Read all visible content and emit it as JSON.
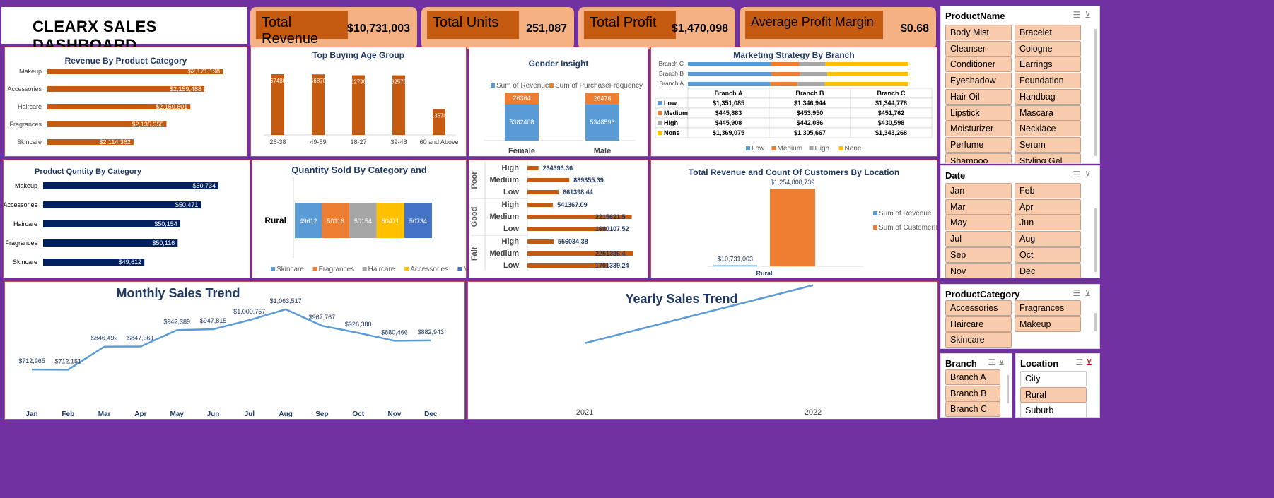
{
  "title": "CLEARX SALES DASHBOARD",
  "kpis": {
    "revenue": {
      "label": "Total Revenue",
      "value": "$10,731,003"
    },
    "units": {
      "label": "Total Units",
      "value": "251,087"
    },
    "profit": {
      "label": "Total Profit",
      "value": "$1,470,098"
    },
    "margin": {
      "label": "Average Profit Margin",
      "value": "$0.68"
    }
  },
  "colors": {
    "orange": "#c55a11",
    "navy": "#002060",
    "blue": "#5b9bd5",
    "lightorange": "#ed7d31",
    "gray": "#a5a5a5",
    "gold": "#ffc000",
    "royal": "#4472c4",
    "bg": "#7030a0"
  },
  "revenue_by_category": {
    "title": "Revenue By Product Category",
    "categories": [
      "Makeup",
      "Accessories",
      "Haircare",
      "Fragrances",
      "Skincare"
    ],
    "values": [
      2171198,
      2159488,
      2150601,
      2135355,
      2114362
    ],
    "labels": [
      "$2,171,198",
      "$2,159,488",
      "$2,150,601",
      "$2,135,355",
      "$2,114,362"
    ]
  },
  "age_group": {
    "title": "Top Buying Age Group",
    "categories": [
      "28-38",
      "49-59",
      "18-27",
      "39-48",
      "60 and Above"
    ],
    "values": [
      2674800,
      2668700,
      2627900,
      2625700,
      1135700
    ],
    "labels": [
      "2674800",
      "2668700",
      "2627900",
      "2625700",
      "1135700"
    ]
  },
  "gender": {
    "title": "Gender Insight",
    "legend": [
      "Sum of Revenue",
      "Sum of PurchaseFrequency"
    ],
    "categories": [
      "Female",
      "Male"
    ],
    "revenue": [
      5382408,
      5348596
    ],
    "frequency": [
      26364,
      26476
    ]
  },
  "marketing": {
    "title": "Marketing Strategy By Branch",
    "branches_bar": [
      "Branch C",
      "Branch B",
      "Branch A"
    ],
    "columns": [
      "Branch A",
      "Branch B",
      "Branch C"
    ],
    "rows": [
      {
        "name": "Low",
        "values": [
          "$1,351,085",
          "$1,346,944",
          "$1,344,778"
        ]
      },
      {
        "name": "Medium",
        "values": [
          "$445,883",
          "$453,950",
          "$451,762"
        ]
      },
      {
        "name": "High",
        "values": [
          "$445,908",
          "$442,086",
          "$430,598"
        ]
      },
      {
        "name": "None",
        "values": [
          "$1,369,075",
          "$1,305,667",
          "$1,343,268"
        ]
      }
    ],
    "raw": {
      "Branch A": [
        1351085,
        445883,
        445908,
        1369075
      ],
      "Branch B": [
        1346944,
        453950,
        442086,
        1305667
      ],
      "Branch C": [
        1344778,
        451762,
        430598,
        1343268
      ]
    },
    "legend": [
      "Low",
      "Medium",
      "High",
      "None"
    ]
  },
  "qty_by_category": {
    "title": "Product Quntity By Category",
    "categories": [
      "Makeup",
      "Accessories",
      "Haircare",
      "Fragrances",
      "Skincare"
    ],
    "values": [
      50734,
      50471,
      50154,
      50116,
      49612
    ],
    "labels": [
      "$50,734",
      "$50,471",
      "$50,154",
      "$50,116",
      "$49,612"
    ]
  },
  "qty_sold": {
    "title": "Quantity Sold By Category and",
    "row_label": "Rural",
    "segments": [
      {
        "name": "Skincare",
        "value": 49612
      },
      {
        "name": "Fragrances",
        "value": 50116
      },
      {
        "name": "Haircare",
        "value": 50154
      },
      {
        "name": "Accessories",
        "value": 50471
      },
      {
        "name": "Makeup",
        "value": 50734
      }
    ]
  },
  "satisfaction": {
    "groups": [
      {
        "name": "Poor",
        "items": [
          {
            "label": "High",
            "value": 234393.36,
            "text": "234393.36"
          },
          {
            "label": "Medium",
            "value": 889355.39,
            "text": "889355.39"
          },
          {
            "label": "Low",
            "value": 661398.44,
            "text": "661398.44"
          }
        ]
      },
      {
        "name": "Good",
        "items": [
          {
            "label": "High",
            "value": 541367.09,
            "text": "541367.09"
          },
          {
            "label": "Medium",
            "value": 2215621.5,
            "text": "2215621.5"
          },
          {
            "label": "Low",
            "value": 1680107.52,
            "text": "1680107.52"
          }
        ]
      },
      {
        "name": "Fair",
        "items": [
          {
            "label": "High",
            "value": 556034.38,
            "text": "556034.38"
          },
          {
            "label": "Medium",
            "value": 2251386.4,
            "text": "2251386.4"
          },
          {
            "label": "Low",
            "value": 1701339.24,
            "text": "1701339.24"
          }
        ]
      }
    ]
  },
  "location_chart": {
    "title": "Total Revenue and Count Of Customers By Location",
    "category": "Rural",
    "revenue": 10731003,
    "revenue_label": "$10,731,003",
    "customers": 1254808739,
    "customers_label": "$1,254,808,739",
    "legend": [
      "Sum of Revenue",
      "Sum of CustomerID"
    ]
  },
  "monthly": {
    "title": "Monthly Sales Trend",
    "months": [
      "Jan",
      "Feb",
      "Mar",
      "Apr",
      "May",
      "Jun",
      "Jul",
      "Aug",
      "Sep",
      "Oct",
      "Nov",
      "Dec"
    ],
    "values": [
      712965,
      712151,
      846492,
      847361,
      942389,
      947815,
      1000757,
      1063517,
      967767,
      926380,
      880466,
      882943
    ],
    "labels": [
      "$712,965",
      "$712,151",
      "$846,492",
      "$847,361",
      "$942,389",
      "$947,815",
      "$1,000,757",
      "$1,063,517",
      "$967,767",
      "$926,380",
      "$880,466",
      "$882,943"
    ]
  },
  "yearly": {
    "title": "Yearly Sales Trend",
    "years": [
      "2021",
      "2022"
    ],
    "values": [
      3900000,
      6830000
    ]
  },
  "slicers": {
    "product": {
      "header": "ProductName",
      "items": [
        "Body Mist",
        "Bracelet",
        "Cleanser",
        "Cologne",
        "Conditioner",
        "Earrings",
        "Eyeshadow",
        "Foundation",
        "Hair Oil",
        "Handbag",
        "Lipstick",
        "Mascara",
        "Moisturizer",
        "Necklace",
        "Perfume",
        "Serum",
        "Shampoo",
        "Styling Gel"
      ]
    },
    "date": {
      "header": "Date",
      "items": [
        "Jan",
        "Feb",
        "Mar",
        "Apr",
        "May",
        "Jun",
        "Jul",
        "Aug",
        "Sep",
        "Oct",
        "Nov",
        "Dec"
      ]
    },
    "category": {
      "header": "ProductCategory",
      "items": [
        "Accessories",
        "Fragrances",
        "Haircare",
        "Makeup",
        "Skincare"
      ]
    },
    "branch": {
      "header": "Branch",
      "items": [
        "Branch A",
        "Branch B",
        "Branch C"
      ]
    },
    "location": {
      "header": "Location",
      "items": [
        "City",
        "Rural",
        "Suburb"
      ],
      "selected": "Rural"
    }
  }
}
